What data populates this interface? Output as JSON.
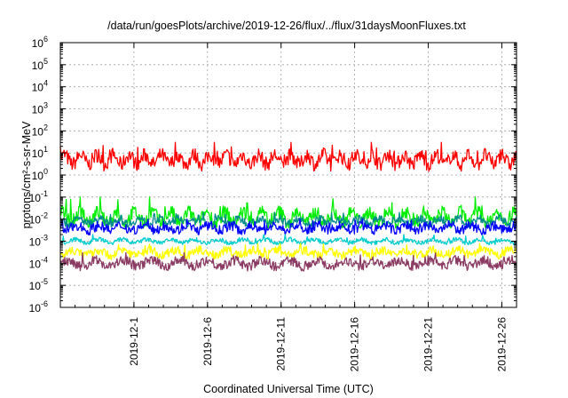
{
  "chart_data": {
    "type": "line",
    "title": "/data/run/goesPlots/archive/2019-12-26/flux/../flux/31daysMoonFluxes.txt",
    "xlabel": "Coordinated Universal Time (UTC)",
    "ylabel": "protons/cm²-s-sr-MeV",
    "y_scale": "log",
    "ylim": [
      1e-06,
      1000000.0
    ],
    "xlim": [
      "2019-11-26",
      "2019-12-27"
    ],
    "grid": true,
    "x_tick_labels": [
      "2019-12-1",
      "2019-12-6",
      "2019-12-11",
      "2019-12-16",
      "2019-12-21",
      "2019-12-26"
    ],
    "y_ticks": [
      {
        "base": "10",
        "exp": "-6"
      },
      {
        "base": "10",
        "exp": "-5"
      },
      {
        "base": "10",
        "exp": "-4"
      },
      {
        "base": "10",
        "exp": "-3"
      },
      {
        "base": "10",
        "exp": "-2"
      },
      {
        "base": "10",
        "exp": "-1"
      },
      {
        "base": "10",
        "exp": "0"
      },
      {
        "base": "10",
        "exp": "1"
      },
      {
        "base": "10",
        "exp": "2"
      },
      {
        "base": "10",
        "exp": "3"
      },
      {
        "base": "10",
        "exp": "4"
      },
      {
        "base": "10",
        "exp": "5"
      },
      {
        "base": "10",
        "exp": "6"
      }
    ],
    "series": [
      {
        "color": "#ff0000",
        "typical": 5,
        "low": 1,
        "high": 30
      },
      {
        "color": "#00ee00",
        "typical": 0.012,
        "low": 0.004,
        "high": 0.1
      },
      {
        "color": "#008b8b",
        "typical": 0.008,
        "low": 0.003,
        "high": 0.02
      },
      {
        "color": "#0000ff",
        "typical": 0.004,
        "low": 0.001,
        "high": 0.01
      },
      {
        "color": "#00cdcd",
        "typical": 0.001,
        "low": 0.0007,
        "high": 0.002
      },
      {
        "color": "#ffff00",
        "typical": 0.0003,
        "low": 0.0001,
        "high": 0.0008
      },
      {
        "color": "#8b3a62",
        "typical": 0.0001,
        "low": 3e-05,
        "high": 0.0003
      }
    ]
  }
}
